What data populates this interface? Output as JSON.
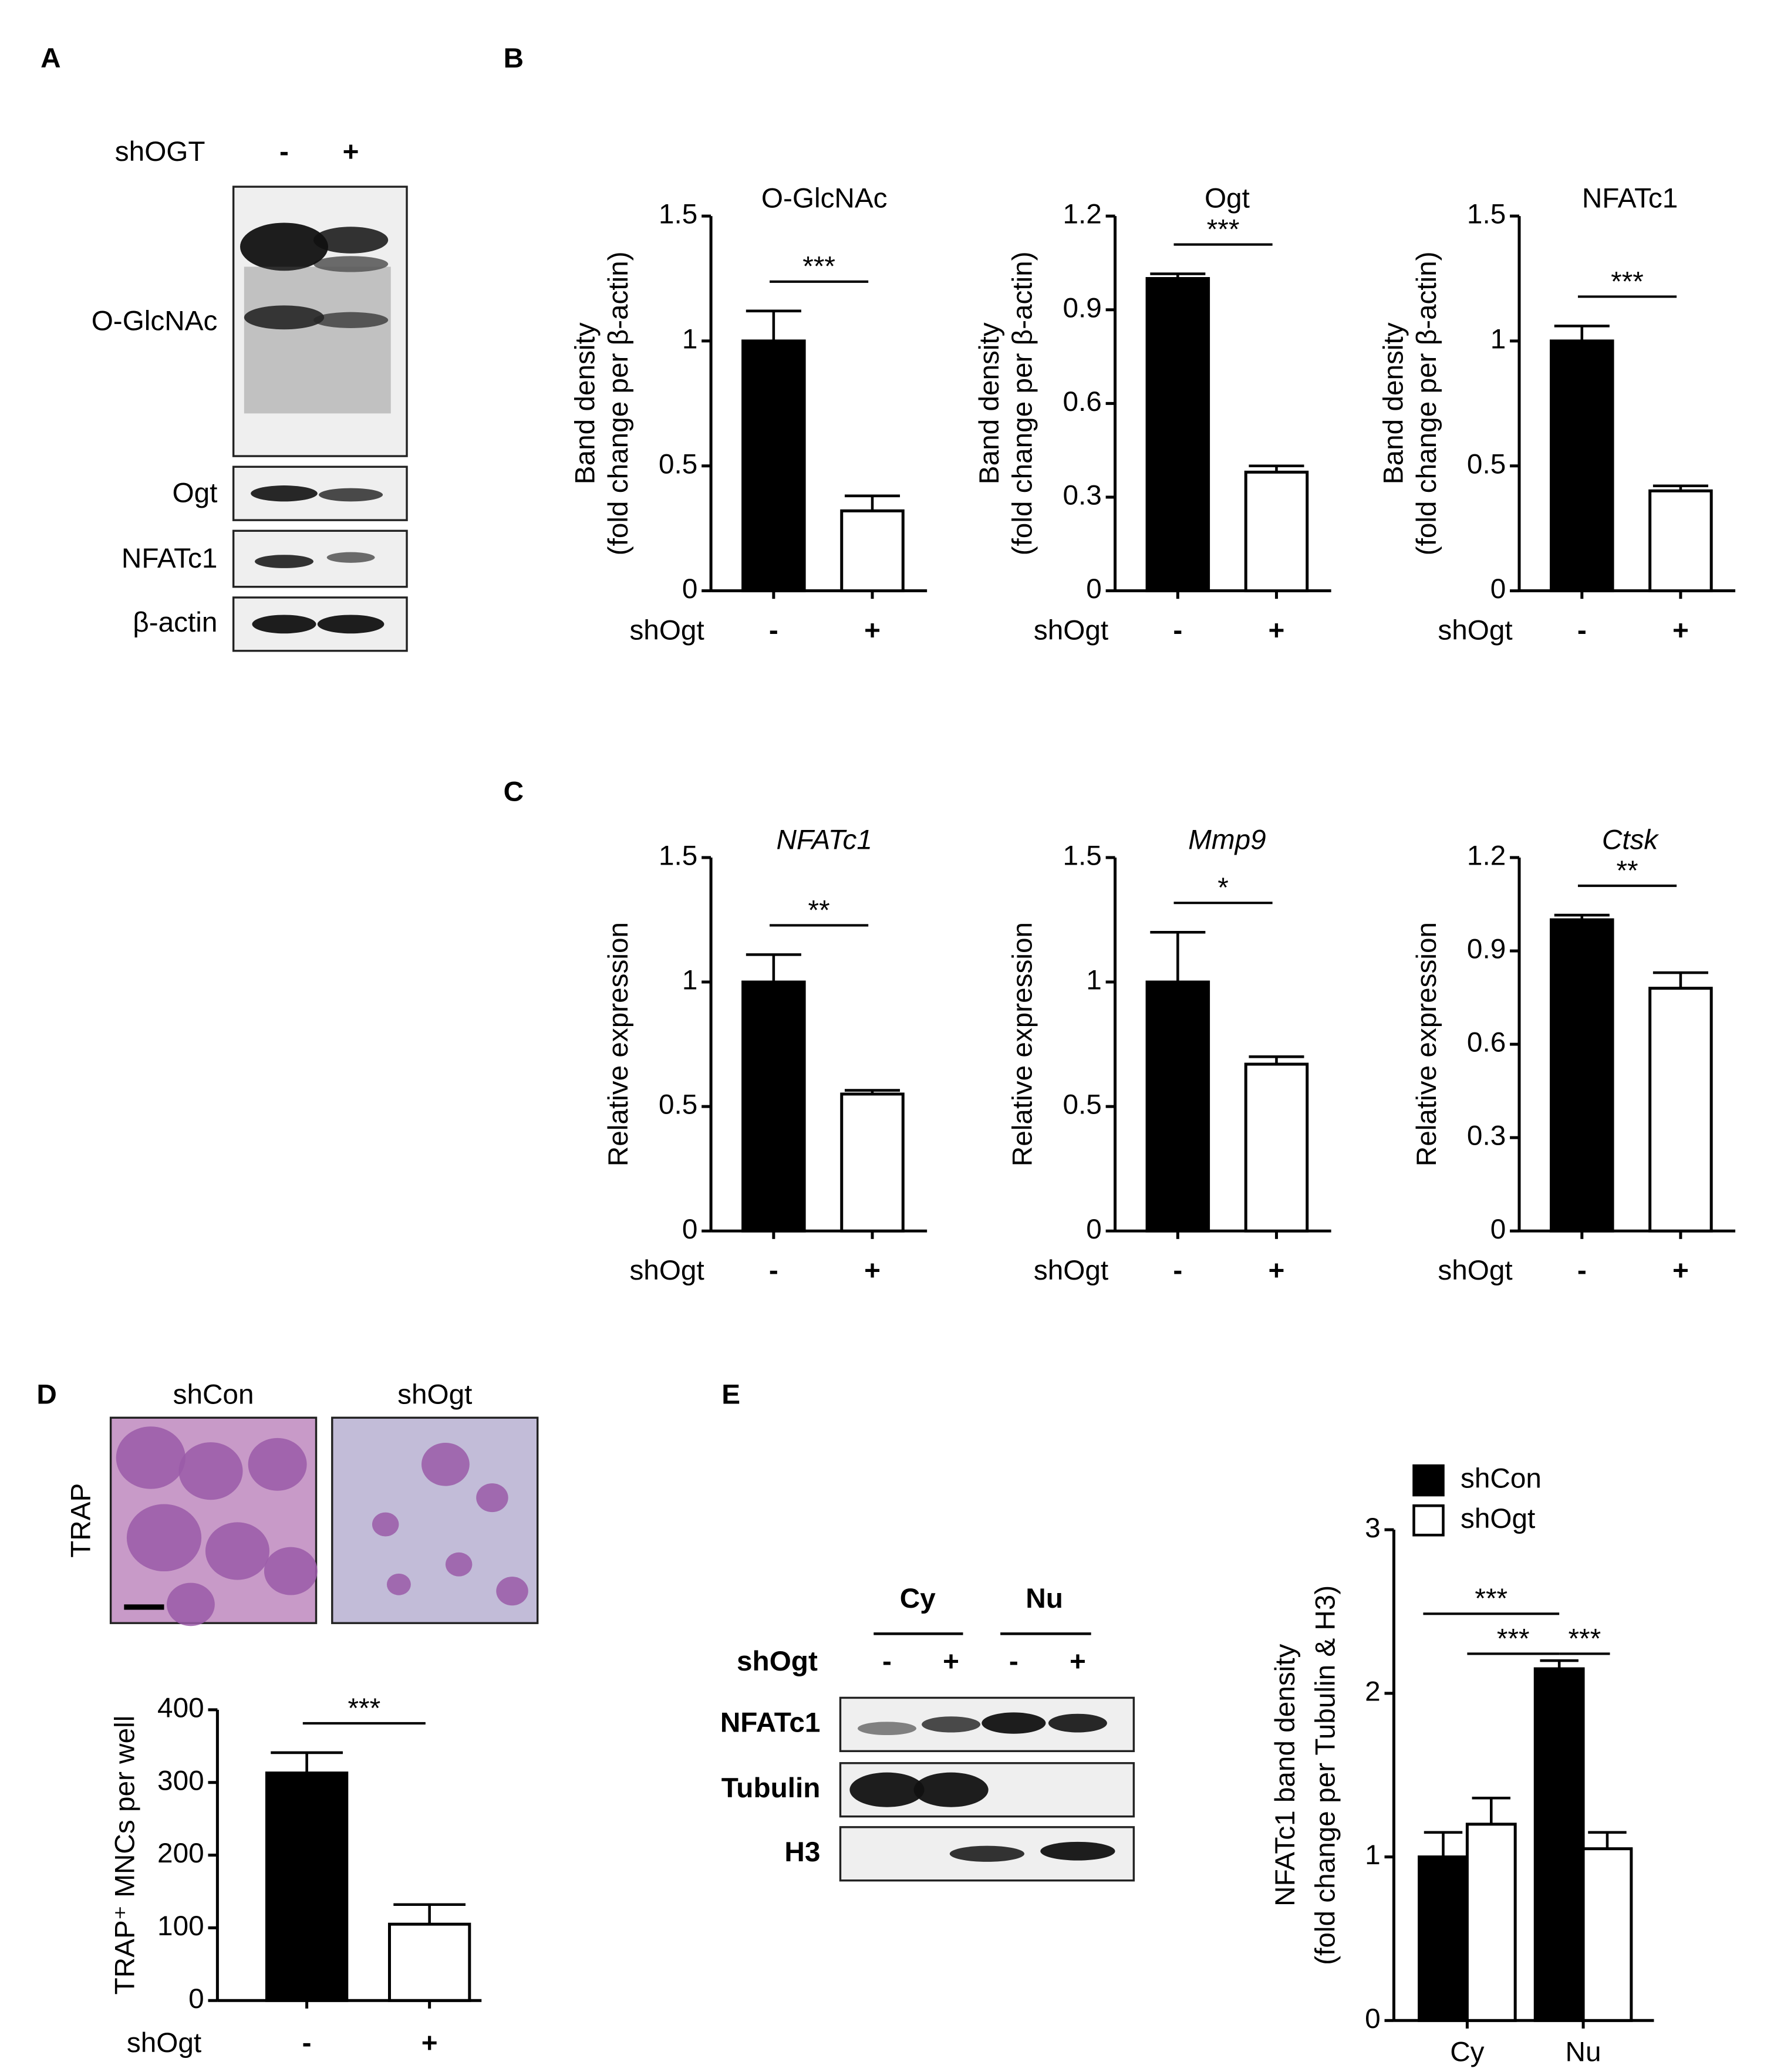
{
  "panel_labels": [
    "A",
    "B",
    "C",
    "D",
    "E"
  ],
  "blot_a": {
    "treatment_label": "shOGT",
    "lanes": [
      "-",
      "+"
    ],
    "rows": [
      "O-GlcNAc",
      "Ogt",
      "NFATc1",
      "β-actin"
    ]
  },
  "images_d": {
    "row_label": "TRAP",
    "columns": [
      "shCon",
      "shOgt"
    ]
  },
  "blot_e": {
    "fractions": [
      "Cy",
      "Nu"
    ],
    "treatment_label": "shOgt",
    "lanes": [
      "-",
      "+",
      "-",
      "+"
    ],
    "rows": [
      "NFATc1",
      "Tubulin",
      "H3"
    ]
  },
  "chart_data": [
    {
      "type": "bar",
      "title": "O-GlcNAc",
      "y_label": [
        "Band density",
        "(fold change per β-actin)"
      ],
      "x_label": "shOgt",
      "categories": [
        "-",
        "+"
      ],
      "values": [
        1,
        0.32
      ],
      "errors": [
        0.12,
        0.06
      ],
      "colors": [
        "#000000",
        "#ffffff"
      ],
      "ylim": [
        0,
        1.5
      ],
      "yticks": [
        0,
        0.5,
        1,
        1.5
      ],
      "significance": "***"
    },
    {
      "type": "bar",
      "title": "Ogt",
      "y_label": [
        "Band density",
        "(fold change per β-actin)"
      ],
      "x_label": "shOgt",
      "categories": [
        "-",
        "+"
      ],
      "values": [
        1,
        0.38
      ],
      "errors": [
        0.015,
        0.02
      ],
      "colors": [
        "#000000",
        "#ffffff"
      ],
      "ylim": [
        0,
        1.2
      ],
      "yticks": [
        0,
        0.3,
        0.6,
        0.9,
        1.2
      ],
      "significance": "***"
    },
    {
      "type": "bar",
      "title": "NFATc1",
      "y_label": [
        "Band density",
        "(fold change per β-actin)"
      ],
      "x_label": "shOgt",
      "categories": [
        "-",
        "+"
      ],
      "values": [
        1,
        0.4
      ],
      "errors": [
        0.06,
        0.02
      ],
      "colors": [
        "#000000",
        "#ffffff"
      ],
      "ylim": [
        0,
        1.5
      ],
      "yticks": [
        0,
        0.5,
        1,
        1.5
      ],
      "significance": "***"
    },
    {
      "type": "bar",
      "title": "NFATc1",
      "title_style": "italic",
      "y_label": [
        "Relative expression"
      ],
      "x_label": "shOgt",
      "categories": [
        "-",
        "+"
      ],
      "values": [
        1,
        0.55
      ],
      "errors": [
        0.11,
        0.015
      ],
      "colors": [
        "#000000",
        "#ffffff"
      ],
      "ylim": [
        0,
        1.5
      ],
      "yticks": [
        0,
        0.5,
        1,
        1.5
      ],
      "significance": "**"
    },
    {
      "type": "bar",
      "title": "Mmp9",
      "title_style": "italic",
      "y_label": [
        "Relative expression"
      ],
      "x_label": "shOgt",
      "categories": [
        "-",
        "+"
      ],
      "values": [
        1,
        0.67
      ],
      "errors": [
        0.2,
        0.03
      ],
      "colors": [
        "#000000",
        "#ffffff"
      ],
      "ylim": [
        0,
        1.5
      ],
      "yticks": [
        0,
        0.5,
        1,
        1.5
      ],
      "significance": "*"
    },
    {
      "type": "bar",
      "title": "Ctsk",
      "title_style": "italic",
      "y_label": [
        "Relative expression"
      ],
      "x_label": "shOgt",
      "categories": [
        "-",
        "+"
      ],
      "values": [
        1,
        0.78
      ],
      "errors": [
        0.015,
        0.05
      ],
      "colors": [
        "#000000",
        "#ffffff"
      ],
      "ylim": [
        0,
        1.2
      ],
      "yticks": [
        0,
        0.3,
        0.6,
        0.9,
        1.2
      ],
      "significance": "**"
    },
    {
      "type": "bar",
      "y_label": [
        "TRAP⁺ MNCs per well"
      ],
      "x_label": "shOgt",
      "categories": [
        "-",
        "+"
      ],
      "values": [
        313,
        105
      ],
      "errors": [
        28,
        27
      ],
      "colors": [
        "#000000",
        "#ffffff"
      ],
      "ylim": [
        0,
        400
      ],
      "yticks": [
        0,
        100,
        200,
        300,
        400
      ],
      "significance": "***"
    },
    {
      "type": "grouped_bar",
      "y_label": [
        "NFATc1 band density",
        "(fold change per Tubulin & H3)"
      ],
      "categories": [
        "Cy",
        "Nu"
      ],
      "series": [
        {
          "name": "shCon",
          "color": "#000000",
          "values": [
            1,
            2.15
          ],
          "errors": [
            0.15,
            0.05
          ]
        },
        {
          "name": "shOgt",
          "color": "#ffffff",
          "values": [
            1.2,
            1.05
          ],
          "errors": [
            0.16,
            0.1
          ]
        }
      ],
      "ylim": [
        0,
        3
      ],
      "yticks": [
        0,
        1,
        2,
        3
      ],
      "legend": "upper left",
      "significance": [
        "***",
        "***",
        "***"
      ]
    }
  ]
}
